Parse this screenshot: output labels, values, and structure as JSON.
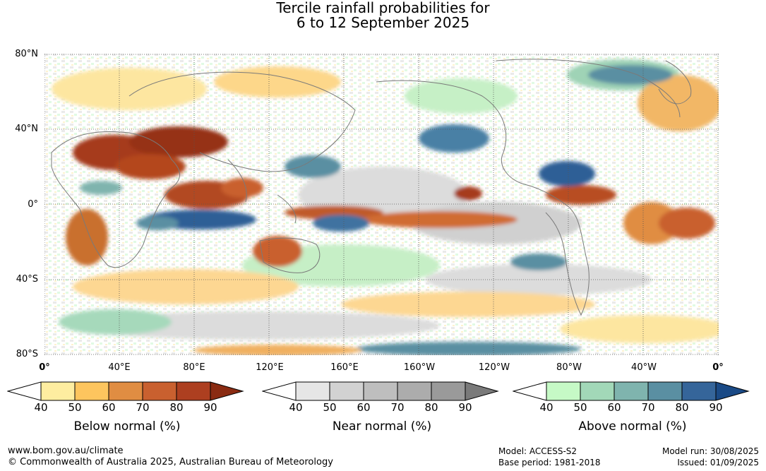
{
  "title_line1": "Tercile rainfall probabilities for",
  "title_line2": "6 to 12 September 2025",
  "lat_labels": [
    "80°N",
    "40°N",
    "0°",
    "40°S",
    "80°S"
  ],
  "lon_labels": [
    "0°",
    "40°E",
    "80°E",
    "120°E",
    "160°E",
    "160°W",
    "120°W",
    "80°W",
    "40°W",
    "0°"
  ],
  "legends": [
    {
      "title": "Below normal (%)",
      "ticks": [
        "40",
        "50",
        "60",
        "70",
        "80",
        "90"
      ],
      "colors": [
        "#ffffff",
        "#feeda0",
        "#fdc55e",
        "#e08d42",
        "#c9602f",
        "#ad3f20",
        "#8a2b12"
      ]
    },
    {
      "title": "Near normal (%)",
      "ticks": [
        "40",
        "50",
        "60",
        "70",
        "80",
        "90"
      ],
      "colors": [
        "#ffffff",
        "#e6e6e6",
        "#d2d2d2",
        "#bebebe",
        "#acacac",
        "#9a9a9a",
        "#7a7a7a"
      ]
    },
    {
      "title": "Above normal (%)",
      "ticks": [
        "40",
        "50",
        "60",
        "70",
        "80",
        "90"
      ],
      "colors": [
        "#ffffff",
        "#c6f9c6",
        "#a2d8b8",
        "#7fb4ae",
        "#5a8fa2",
        "#35659a",
        "#1a4a86"
      ]
    }
  ],
  "footer": {
    "website": "www.bom.gov.au/climate",
    "copyright": "© Commonwealth of Australia 2025, Australian Bureau of Meteorology",
    "model": "Model: ACCESS-S2",
    "base_period": "Base period: 1981-2018",
    "model_run": "Model run: 30/08/2025",
    "issued": "Issued: 01/09/2025"
  }
}
